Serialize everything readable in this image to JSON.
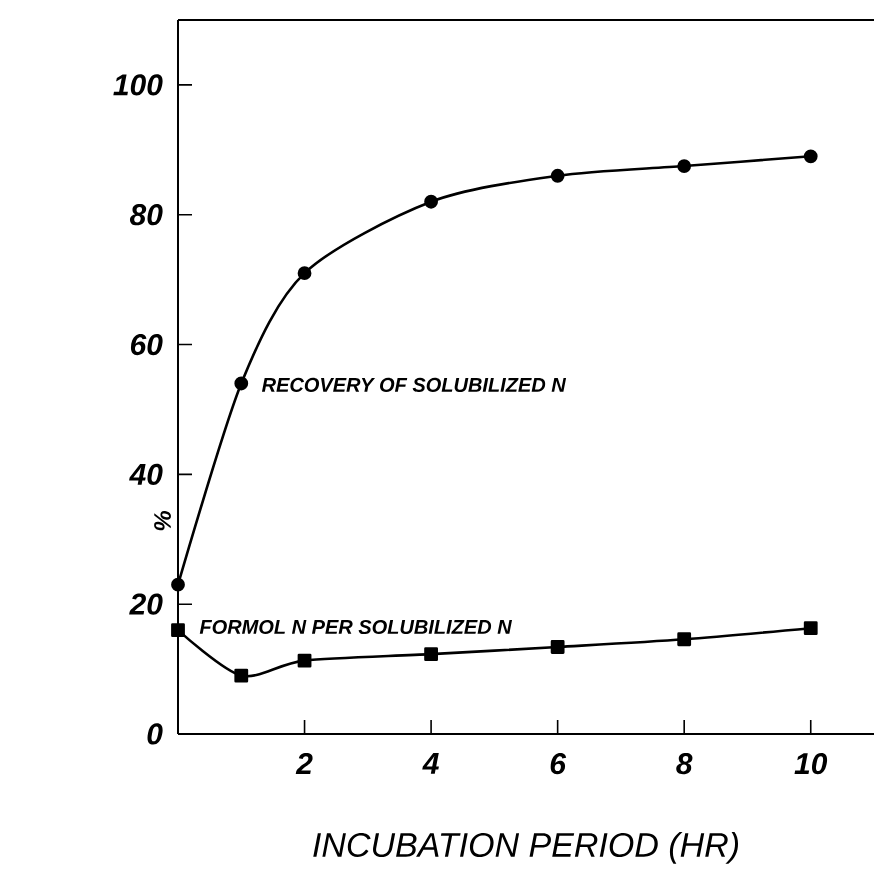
{
  "chart_data": {
    "type": "line",
    "xlabel": "INCUBATION PERIOD  (HR)",
    "ylabel": "%",
    "x": [
      0,
      1,
      2,
      4,
      6,
      8,
      10
    ],
    "series": [
      {
        "name": "RECOVERY OF SOLUBILIZED N",
        "color": "#000000",
        "marker": "circle",
        "values": [
          23,
          54,
          71,
          82,
          86,
          87.5,
          89
        ]
      },
      {
        "name": "FORMOL N PER SOLUBILIZED N",
        "color": "#000000",
        "marker": "square",
        "values": [
          16,
          9,
          11.3,
          12.3,
          13.4,
          14.6,
          16.3
        ]
      }
    ],
    "xlim": [
      0,
      11
    ],
    "ylim": [
      0,
      110
    ],
    "xticks": [
      2,
      4,
      6,
      8,
      10
    ],
    "yticks": [
      0,
      20,
      40,
      60,
      80,
      100
    ],
    "grid": false,
    "line_style": "solid"
  }
}
